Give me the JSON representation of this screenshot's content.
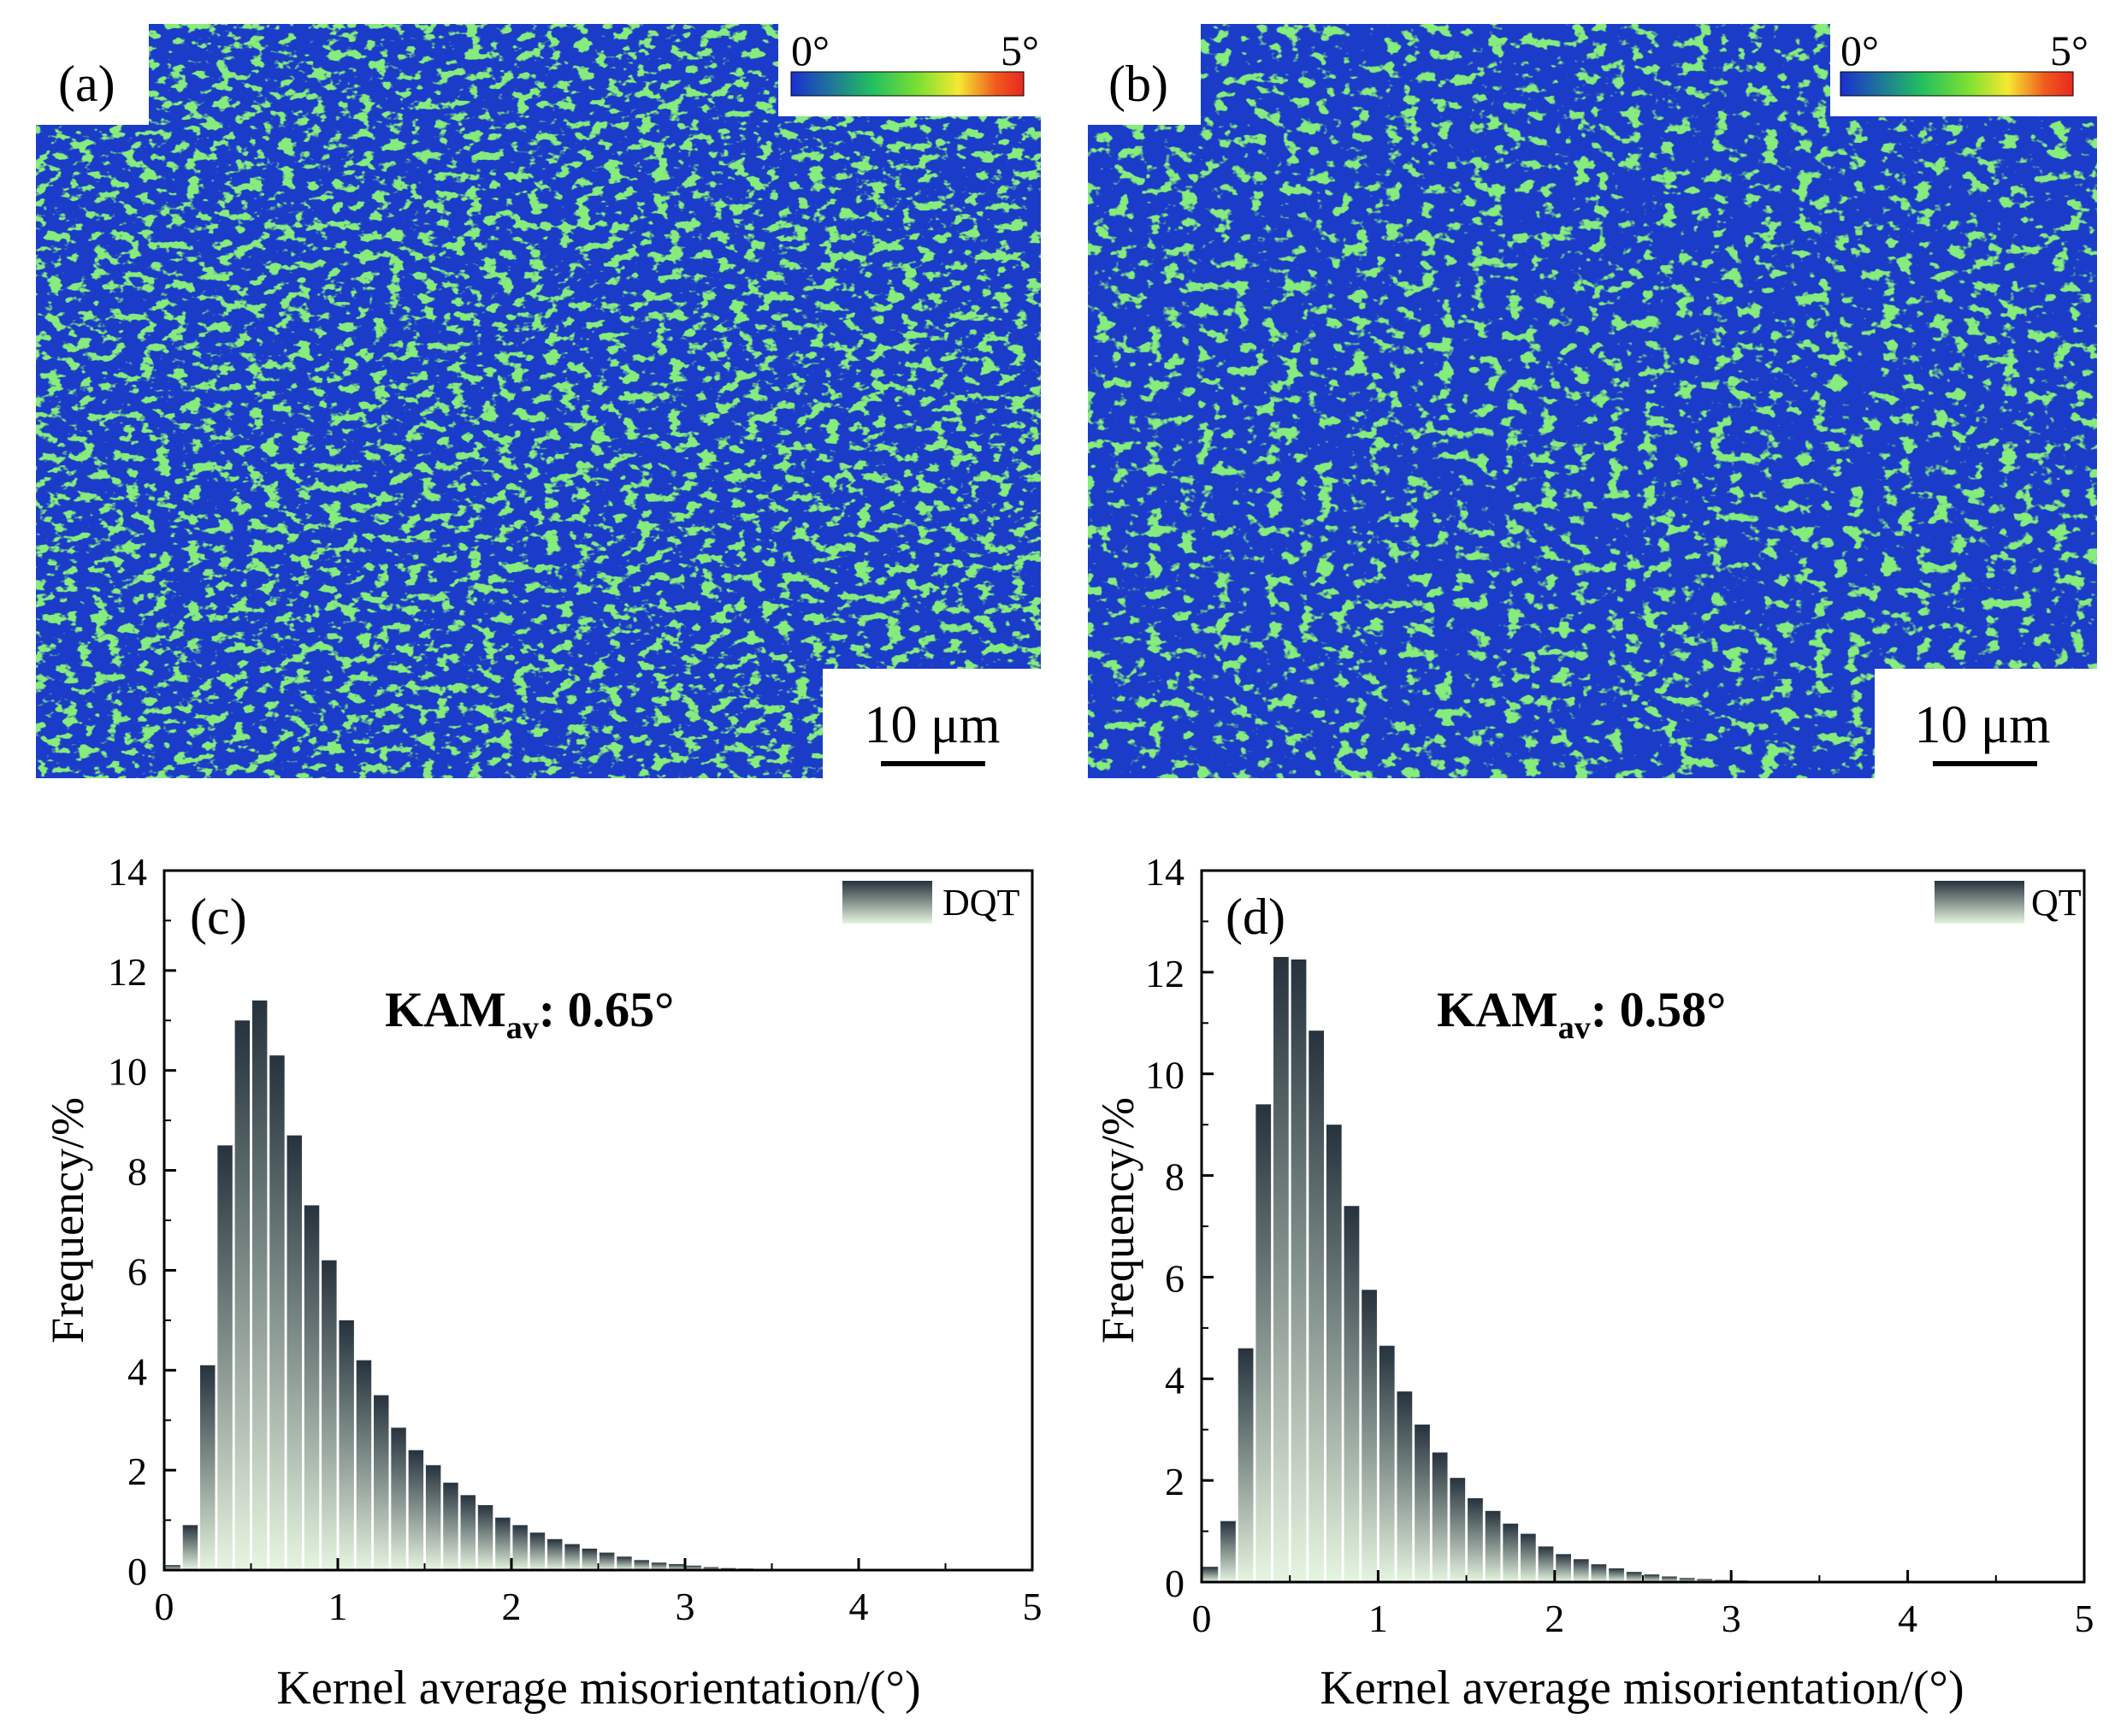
{
  "maps": [
    {
      "panel": "(a)",
      "colorbar": {
        "min_label": "0°",
        "max_label": "5°"
      },
      "scalebar_label": "10 μm"
    },
    {
      "panel": "(b)",
      "colorbar": {
        "min_label": "0°",
        "max_label": "5°"
      },
      "scalebar_label": "10 μm"
    }
  ],
  "colors": {
    "map_blue": "#1a3cc8",
    "map_green": "#3fd23a",
    "bar_top": "#26323d",
    "bar_bottom": "#e6f5e0",
    "colorbar_stops": [
      "#1a2fd0",
      "#22c060",
      "#7de032",
      "#f6e832",
      "#f05a1e",
      "#e8281e"
    ]
  },
  "chart_data": [
    {
      "type": "bar",
      "panel": "(c)",
      "legend": "DQT",
      "annotation": {
        "main": "KAM",
        "sub": "av",
        "value": ": 0.65°"
      },
      "xlabel": "Kernel average misorientation/(°)",
      "ylabel": "Frequency/%",
      "xlim": [
        0,
        5
      ],
      "ylim": [
        0,
        14
      ],
      "xticks": [
        "0",
        "1",
        "2",
        "3",
        "4",
        "5"
      ],
      "yticks": [
        "0",
        "2",
        "4",
        "6",
        "8",
        "10",
        "12",
        "14"
      ],
      "bin_width": 0.1,
      "x": [
        0.05,
        0.15,
        0.25,
        0.35,
        0.45,
        0.55,
        0.65,
        0.75,
        0.85,
        0.95,
        1.05,
        1.15,
        1.25,
        1.35,
        1.45,
        1.55,
        1.65,
        1.75,
        1.85,
        1.95,
        2.05,
        2.15,
        2.25,
        2.35,
        2.45,
        2.55,
        2.65,
        2.75,
        2.85,
        2.95,
        3.05,
        3.15,
        3.25,
        3.35,
        3.45,
        3.55,
        3.65,
        3.75,
        3.85,
        3.95,
        4.05,
        4.15,
        4.25,
        4.35,
        4.45,
        4.55,
        4.65,
        4.75,
        4.85,
        4.95
      ],
      "values": [
        0.1,
        0.9,
        4.1,
        8.5,
        11.0,
        11.4,
        10.3,
        8.7,
        7.3,
        6.2,
        5.0,
        4.2,
        3.5,
        2.85,
        2.4,
        2.1,
        1.75,
        1.5,
        1.3,
        1.05,
        0.9,
        0.75,
        0.62,
        0.52,
        0.43,
        0.35,
        0.27,
        0.2,
        0.15,
        0.12,
        0.09,
        0.06,
        0.04,
        0.03,
        0.02,
        0.02,
        0.01,
        0.01,
        0.01,
        0.01,
        0.01,
        0.01,
        0.01,
        0.01,
        0.01,
        0.01,
        0.01,
        0.01,
        0.01,
        0.01
      ]
    },
    {
      "type": "bar",
      "panel": "(d)",
      "legend": "QT",
      "annotation": {
        "main": "KAM",
        "sub": "av",
        "value": ": 0.58°"
      },
      "xlabel": "Kernel average misorientation/(°)",
      "ylabel": "Frequency/%",
      "xlim": [
        0,
        5
      ],
      "ylim": [
        0,
        14
      ],
      "xticks": [
        "0",
        "1",
        "2",
        "3",
        "4",
        "5"
      ],
      "yticks": [
        "0",
        "2",
        "4",
        "6",
        "8",
        "10",
        "12",
        "14"
      ],
      "bin_width": 0.1,
      "x": [
        0.05,
        0.15,
        0.25,
        0.35,
        0.45,
        0.55,
        0.65,
        0.75,
        0.85,
        0.95,
        1.05,
        1.15,
        1.25,
        1.35,
        1.45,
        1.55,
        1.65,
        1.75,
        1.85,
        1.95,
        2.05,
        2.15,
        2.25,
        2.35,
        2.45,
        2.55,
        2.65,
        2.75,
        2.85,
        2.95,
        3.05,
        3.15,
        3.25,
        3.35,
        3.45,
        3.55,
        3.65,
        3.75,
        3.85,
        3.95,
        4.05,
        4.15,
        4.25,
        4.35,
        4.45,
        4.55,
        4.65,
        4.75,
        4.85,
        4.95
      ],
      "values": [
        0.3,
        1.2,
        4.6,
        9.4,
        12.3,
        12.25,
        10.85,
        9.0,
        7.4,
        5.75,
        4.65,
        3.75,
        3.1,
        2.55,
        2.05,
        1.65,
        1.4,
        1.15,
        0.95,
        0.7,
        0.55,
        0.45,
        0.35,
        0.27,
        0.2,
        0.15,
        0.11,
        0.08,
        0.06,
        0.04,
        0.03,
        0.02,
        0.01,
        0.01,
        0.01,
        0.01,
        0.01,
        0.01,
        0.01,
        0.01,
        0.01,
        0.01,
        0.01,
        0.01,
        0.01,
        0.01,
        0.01,
        0.01,
        0.01,
        0.01
      ]
    }
  ]
}
